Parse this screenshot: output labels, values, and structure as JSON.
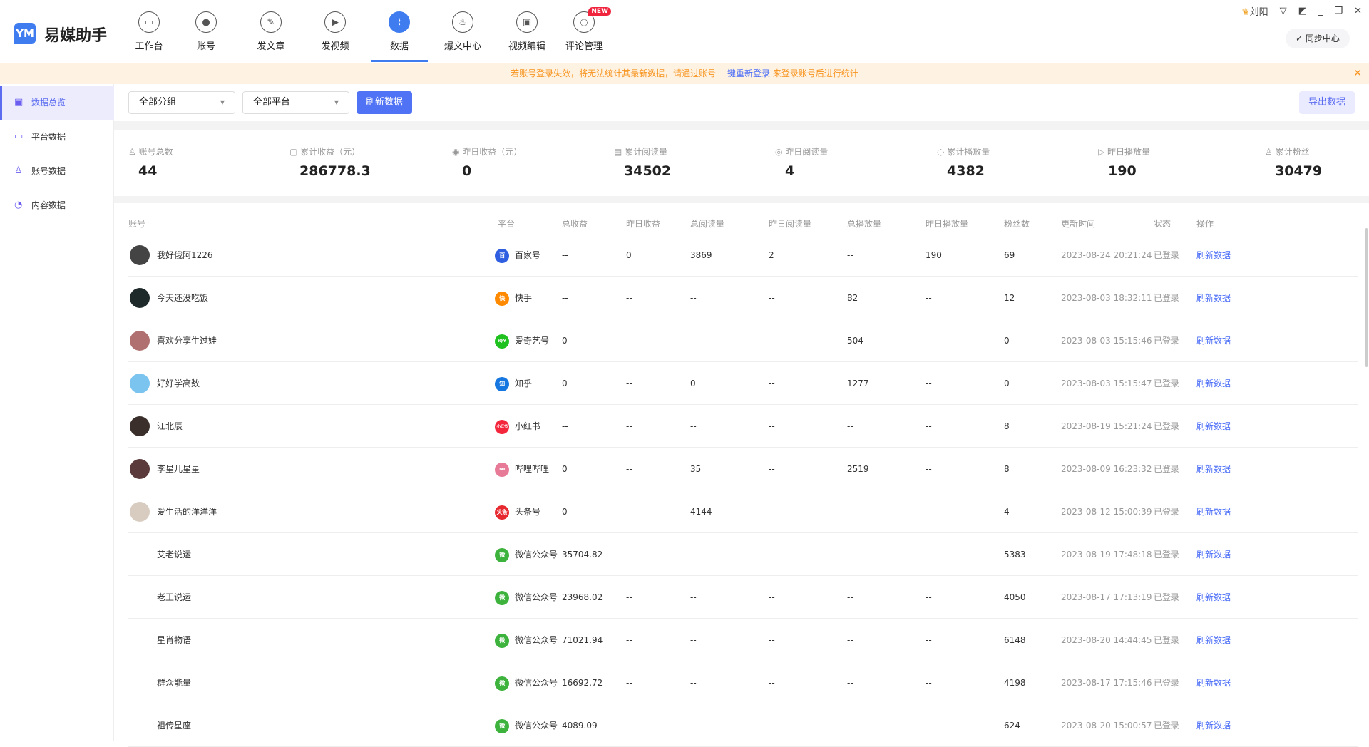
{
  "app": {
    "title": "易媒助手",
    "logo": "YM"
  },
  "nav": [
    {
      "label": "工作台",
      "icon": "monitor-icon",
      "glyph": "▭"
    },
    {
      "label": "账号",
      "icon": "user-icon",
      "glyph": "●"
    },
    {
      "label": "发文章",
      "icon": "feather-icon",
      "glyph": "✎"
    },
    {
      "label": "发视频",
      "icon": "play-icon",
      "glyph": "▶"
    },
    {
      "label": "数据",
      "icon": "chart-icon",
      "glyph": "⌇",
      "active": true
    },
    {
      "label": "爆文中心",
      "icon": "fire-icon",
      "glyph": "♨"
    },
    {
      "label": "视频编辑",
      "icon": "toolbox-icon",
      "glyph": "▣"
    },
    {
      "label": "评论管理",
      "icon": "comment-icon",
      "glyph": "◌",
      "badge": "NEW"
    }
  ],
  "user": {
    "name": "刘阳"
  },
  "sync": {
    "label": "同步中心"
  },
  "banner": {
    "before": "若账号登录失效，将无法统计其最新数据，请通过账号 ",
    "link": "一键重新登录",
    "after": " 来登录账号后进行统计"
  },
  "sidebar": [
    {
      "label": "数据总览",
      "icon": "chart-board-icon",
      "glyph": "▣",
      "active": true
    },
    {
      "label": "平台数据",
      "icon": "monitor-icon",
      "glyph": "▭"
    },
    {
      "label": "账号数据",
      "icon": "user-icon",
      "glyph": "♙"
    },
    {
      "label": "内容数据",
      "icon": "pie-chart-icon",
      "glyph": "◔"
    }
  ],
  "toolbar": {
    "group_select": "全部分组",
    "platform_select": "全部平台",
    "refresh": "刷新数据",
    "export": "导出数据"
  },
  "stats": [
    {
      "label": "账号总数",
      "value": "44",
      "icon": "user-icon",
      "glyph": "♙"
    },
    {
      "label": "累计收益（元）",
      "value": "286778.3",
      "icon": "wallet-icon",
      "glyph": "▢"
    },
    {
      "label": "昨日收益（元）",
      "value": "0",
      "icon": "coin-icon",
      "glyph": "◉"
    },
    {
      "label": "累计阅读量",
      "value": "34502",
      "icon": "document-icon",
      "glyph": "▤"
    },
    {
      "label": "昨日阅读量",
      "value": "4",
      "icon": "eye-icon",
      "glyph": "◎"
    },
    {
      "label": "累计播放量",
      "value": "4382",
      "icon": "trend-icon",
      "glyph": "◌"
    },
    {
      "label": "昨日播放量",
      "value": "190",
      "icon": "play-icon",
      "glyph": "▷"
    },
    {
      "label": "累计粉丝",
      "value": "30479",
      "icon": "user-add-icon",
      "glyph": "♙"
    }
  ],
  "table": {
    "headers": [
      "账号",
      "平台",
      "总收益",
      "昨日收益",
      "总阅读量",
      "昨日阅读量",
      "总播放量",
      "昨日播放量",
      "粉丝数",
      "更新时间",
      "状态",
      "操作"
    ],
    "rows": [
      {
        "account": "我好俄阿1226",
        "platform": "百家号",
        "pcolor": "#2f5fe0",
        "pglyph": "百",
        "avatar": "#444",
        "cells": [
          "--",
          "0",
          "3869",
          "2",
          "--",
          "190",
          "69"
        ],
        "time": "2023-08-24 20:21:24",
        "status": "已登录",
        "action": "刷新数据"
      },
      {
        "account": "今天还没吃饭",
        "platform": "快手",
        "pcolor": "#ff8a00",
        "pglyph": "快",
        "avatar": "#1e2a2a",
        "cells": [
          "--",
          "--",
          "--",
          "--",
          "82",
          "--",
          "12"
        ],
        "time": "2023-08-03 18:32:11",
        "status": "已登录",
        "action": "刷新数据"
      },
      {
        "account": "喜欢分享生过娃",
        "platform": "爱奇艺号",
        "pcolor": "#1fc11f",
        "pglyph": "iQIY",
        "avatar": "#b07070",
        "cells": [
          "0",
          "--",
          "--",
          "--",
          "504",
          "--",
          "0"
        ],
        "time": "2023-08-03 15:15:46",
        "status": "已登录",
        "action": "刷新数据"
      },
      {
        "account": "好好学高数",
        "platform": "知乎",
        "pcolor": "#1677e0",
        "pglyph": "知",
        "avatar": "#7cc4f0",
        "cells": [
          "0",
          "--",
          "0",
          "--",
          "1277",
          "--",
          "0"
        ],
        "time": "2023-08-03 15:15:47",
        "status": "已登录",
        "action": "刷新数据"
      },
      {
        "account": "江北辰",
        "platform": "小红书",
        "pcolor": "#f3263c",
        "pglyph": "小红书",
        "avatar": "#3a2f2a",
        "cells": [
          "--",
          "--",
          "--",
          "--",
          "--",
          "--",
          "8"
        ],
        "time": "2023-08-19 15:21:24",
        "status": "已登录",
        "action": "刷新数据"
      },
      {
        "account": "李星儿星星",
        "platform": "哔哩哔哩",
        "pcolor": "#e77a96",
        "pglyph": "bili",
        "avatar": "#5a3a3a",
        "cells": [
          "0",
          "--",
          "35",
          "--",
          "2519",
          "--",
          "8"
        ],
        "time": "2023-08-09 16:23:32",
        "status": "已登录",
        "action": "刷新数据"
      },
      {
        "account": "爱生活的洋洋洋",
        "platform": "头条号",
        "pcolor": "#e8282f",
        "pglyph": "头条",
        "avatar": "#d8ccc0",
        "cells": [
          "0",
          "--",
          "4144",
          "--",
          "--",
          "--",
          "4"
        ],
        "time": "2023-08-12 15:00:39",
        "status": "已登录",
        "action": "刷新数据"
      },
      {
        "account": "艾老说运",
        "platform": "微信公众号",
        "pcolor": "#3db33d",
        "pglyph": "微",
        "cells": [
          "35704.82",
          "--",
          "--",
          "--",
          "--",
          "--",
          "5383"
        ],
        "time": "2023-08-19 17:48:18",
        "status": "已登录",
        "action": "刷新数据"
      },
      {
        "account": "老王说运",
        "platform": "微信公众号",
        "pcolor": "#3db33d",
        "pglyph": "微",
        "cells": [
          "23968.02",
          "--",
          "--",
          "--",
          "--",
          "--",
          "4050"
        ],
        "time": "2023-08-17 17:13:19",
        "status": "已登录",
        "action": "刷新数据"
      },
      {
        "account": "星肖物语",
        "platform": "微信公众号",
        "pcolor": "#3db33d",
        "pglyph": "微",
        "cells": [
          "71021.94",
          "--",
          "--",
          "--",
          "--",
          "--",
          "6148"
        ],
        "time": "2023-08-20 14:44:45",
        "status": "已登录",
        "action": "刷新数据"
      },
      {
        "account": "群众能量",
        "platform": "微信公众号",
        "pcolor": "#3db33d",
        "pglyph": "微",
        "cells": [
          "16692.72",
          "--",
          "--",
          "--",
          "--",
          "--",
          "4198"
        ],
        "time": "2023-08-17 17:15:46",
        "status": "已登录",
        "action": "刷新数据"
      },
      {
        "account": "祖传星座",
        "platform": "微信公众号",
        "pcolor": "#3db33d",
        "pglyph": "微",
        "cells": [
          "4089.09",
          "--",
          "--",
          "--",
          "--",
          "--",
          "624"
        ],
        "time": "2023-08-20 15:00:57",
        "status": "已登录",
        "action": "刷新数据"
      }
    ]
  },
  "colors": {
    "accent": "#5073f5",
    "nav_active": "#3f7cf0",
    "warning": "#f7941d"
  }
}
